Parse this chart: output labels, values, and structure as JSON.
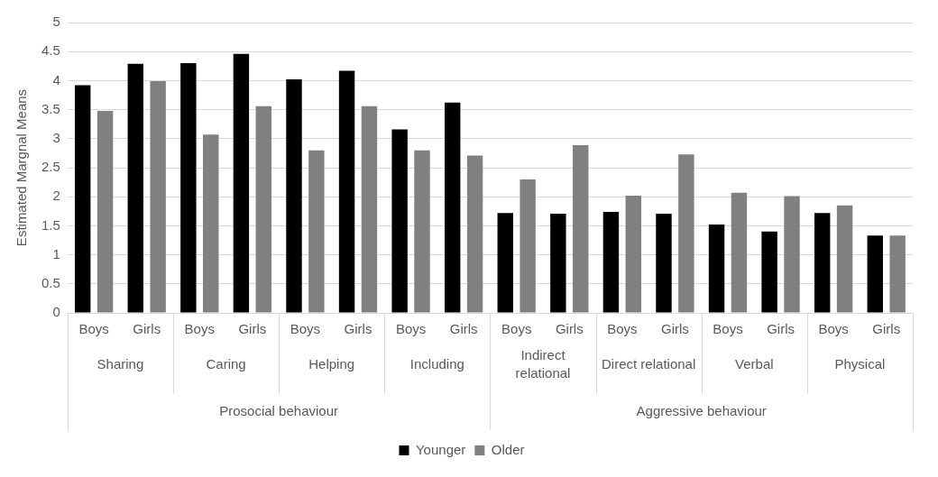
{
  "chart_data": {
    "type": "bar",
    "ylabel": "Estimated Margnal Means",
    "categories": [
      "Boys",
      "Girls",
      "Boys",
      "Girls",
      "Boys",
      "Girls",
      "Boys",
      "Girls",
      "Boys",
      "Girls",
      "Boys",
      "Girls",
      "Boys",
      "Girls",
      "Boys",
      "Girls"
    ],
    "annotations": [
      "Sharing",
      "Caring",
      "Helping",
      "Including",
      "Indirect relational",
      "Direct relational",
      "Verbal",
      "Physical",
      "Prosocial behaviour",
      "Aggressive behaviour"
    ],
    "series": [
      {
        "name": "Younger",
        "color": "#000000",
        "values": [
          3.92,
          4.29,
          4.3,
          4.46,
          4.02,
          4.17,
          3.16,
          3.62,
          1.72,
          1.71,
          1.74,
          1.71,
          1.52,
          1.4,
          1.72,
          1.33
        ]
      },
      {
        "name": "Older",
        "color": "#808080",
        "values": [
          3.48,
          3.99,
          3.07,
          3.56,
          2.8,
          3.56,
          2.8,
          2.71,
          2.3,
          2.89,
          2.02,
          2.73,
          2.07,
          2.01,
          1.85,
          1.33
        ]
      }
    ],
    "ylim": [
      0,
      5
    ],
    "yticks": [
      0,
      0.5,
      1,
      1.5,
      2,
      2.5,
      3,
      3.5,
      4,
      4.5,
      5
    ],
    "grid": "y",
    "legend": "bottom"
  }
}
